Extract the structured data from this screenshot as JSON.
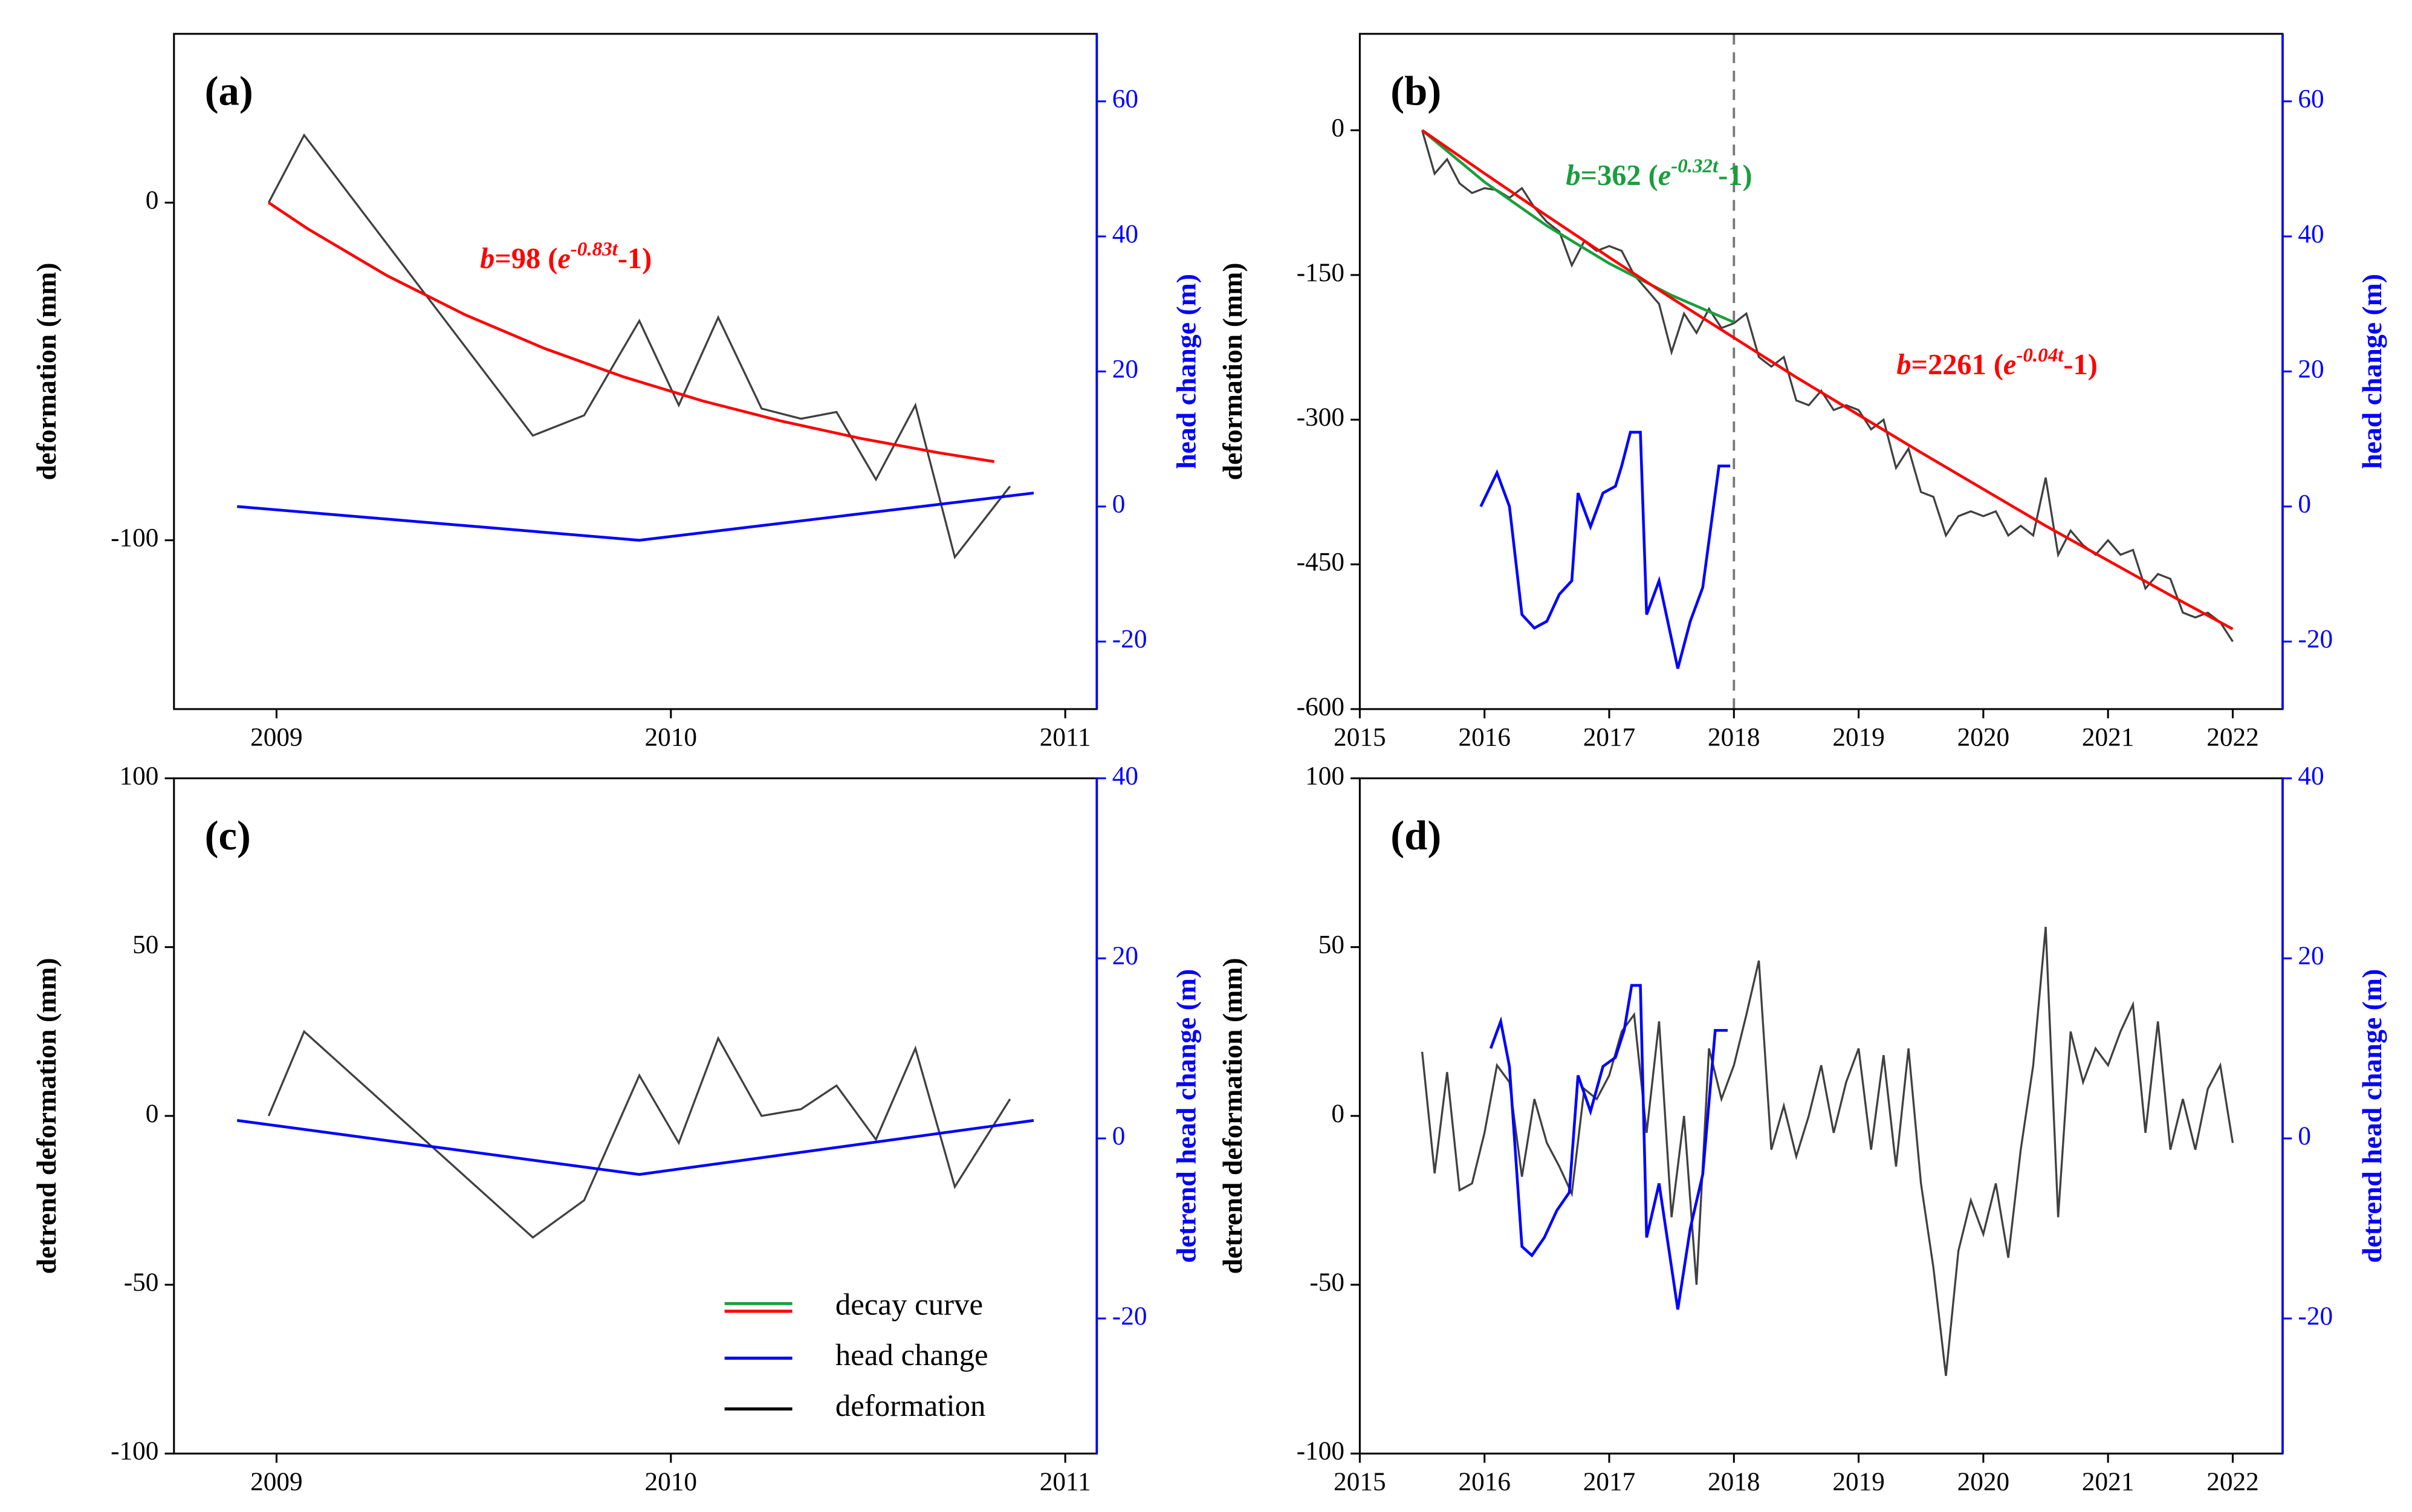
{
  "chart_data": [
    {
      "type": "line",
      "label": "(a)",
      "ylabel": "deformation (mm)",
      "y2label": "head change (m)",
      "y2color": "#0000ff",
      "xlim": [
        2008.74,
        2011.08
      ],
      "xticks": [
        2009,
        2010,
        2011
      ],
      "ylim": [
        -150,
        50
      ],
      "yticks": [
        -100,
        0
      ],
      "y2lim": [
        -30,
        70
      ],
      "y2ticks": [
        -20,
        0,
        20,
        40,
        60
      ],
      "series": [
        {
          "name": "deformation",
          "color": "#404040",
          "x": [
            2008.98,
            2009.07,
            2009.65,
            2009.78,
            2009.92,
            2010.02,
            2010.12,
            2010.23,
            2010.33,
            2010.42,
            2010.52,
            2010.62,
            2010.72,
            2010.86
          ],
          "values": [
            0,
            20,
            -69,
            -63,
            -35,
            -60,
            -34,
            -61,
            -64,
            -62,
            -82,
            -60,
            -105,
            -84
          ]
        },
        {
          "name": "decay curve",
          "color": "#ff0000",
          "x": [
            2008.98,
            2009.08,
            2009.28,
            2009.48,
            2009.68,
            2009.88,
            2010.08,
            2010.28,
            2010.48,
            2010.68,
            2010.82
          ],
          "values": [
            0,
            -7.8,
            -21.6,
            -33.3,
            -43.2,
            -51.6,
            -58.7,
            -64.7,
            -69.8,
            -74.1,
            -76.7
          ]
        },
        {
          "name": "head change",
          "color": "#0000ff",
          "axis": "y2",
          "x": [
            2008.9,
            2009.92,
            2010.92
          ],
          "values": [
            0,
            -5,
            2
          ]
        }
      ],
      "annotations": [
        {
          "color": "#ff0000",
          "parts": [
            "b",
            "=98 (",
            "e",
            "-0.83t",
            "-1)"
          ]
        }
      ]
    },
    {
      "type": "line",
      "label": "(b)",
      "ylabel": "deformation (mm)",
      "y2label": "head change (m)",
      "y2color": "#0000ff",
      "xlim": [
        2015,
        2022.4
      ],
      "xticks": [
        2015,
        2016,
        2017,
        2018,
        2019,
        2020,
        2021,
        2022
      ],
      "ylim": [
        -600,
        100
      ],
      "yticks": [
        -600,
        -450,
        -300,
        -150,
        0
      ],
      "y2lim": [
        -30,
        70
      ],
      "y2ticks": [
        -20,
        0,
        20,
        40,
        60
      ],
      "vlines": [
        2018
      ],
      "series": [
        {
          "name": "deformation",
          "color": "#404040",
          "x": [
            2015.5,
            2015.6,
            2015.7,
            2015.8,
            2015.9,
            2016.0,
            2016.1,
            2016.2,
            2016.3,
            2016.4,
            2016.5,
            2016.6,
            2016.7,
            2016.8,
            2016.9,
            2017.0,
            2017.1,
            2017.2,
            2017.3,
            2017.4,
            2017.5,
            2017.6,
            2017.7,
            2017.8,
            2017.9,
            2018.0,
            2018.1,
            2018.2,
            2018.3,
            2018.4,
            2018.5,
            2018.6,
            2018.7,
            2018.8,
            2018.9,
            2019.0,
            2019.1,
            2019.2,
            2019.3,
            2019.4,
            2019.5,
            2019.6,
            2019.7,
            2019.8,
            2019.9,
            2020.0,
            2020.1,
            2020.2,
            2020.3,
            2020.4,
            2020.5,
            2020.6,
            2020.7,
            2020.8,
            2020.9,
            2021.0,
            2021.1,
            2021.2,
            2021.3,
            2021.4,
            2021.5,
            2021.6,
            2021.7,
            2021.8,
            2021.9,
            2022.0
          ],
          "values": [
            0,
            -45,
            -30,
            -55,
            -65,
            -60,
            -62,
            -70,
            -60,
            -80,
            -95,
            -105,
            -140,
            -115,
            -125,
            -120,
            -125,
            -150,
            -165,
            -180,
            -230,
            -190,
            -210,
            -185,
            -205,
            -200,
            -190,
            -235,
            -245,
            -235,
            -280,
            -285,
            -270,
            -290,
            -285,
            -290,
            -310,
            -300,
            -350,
            -330,
            -375,
            -380,
            -420,
            -400,
            -395,
            -400,
            -395,
            -420,
            -410,
            -420,
            -360,
            -440,
            -415,
            -430,
            -440,
            -425,
            -440,
            -435,
            -475,
            -460,
            -465,
            -500,
            -505,
            -500,
            -510,
            -530
          ]
        },
        {
          "name": "decay curve",
          "color": "#1a9e3c",
          "x": [
            2015.5,
            2016.0,
            2016.5,
            2017.0,
            2017.5,
            2018.0
          ],
          "values": [
            0,
            -53.6,
            -99,
            -138,
            -171,
            -199
          ]
        },
        {
          "name": "decay curve",
          "color": "#ff0000",
          "x": [
            2015.5,
            2016.0,
            2016.5,
            2017.0,
            2017.5,
            2018.0,
            2018.5,
            2019.0,
            2019.5,
            2020.0,
            2020.5,
            2021.0,
            2021.5,
            2022.0
          ],
          "values": [
            0,
            -44.7,
            -88.6,
            -131.7,
            -174,
            -215,
            -256,
            -295,
            -334,
            -372,
            -410,
            -446,
            -482,
            -517
          ]
        },
        {
          "name": "head change",
          "color": "#0000ff",
          "axis": "y2",
          "x": [
            2015.97,
            2016.1,
            2016.2,
            2016.3,
            2016.4,
            2016.5,
            2016.6,
            2016.7,
            2016.75,
            2016.85,
            2016.95,
            2017.05,
            2017.1,
            2017.17,
            2017.25,
            2017.3,
            2017.4,
            2017.55,
            2017.65,
            2017.75,
            2017.88,
            2017.97
          ],
          "values": [
            0,
            5,
            0,
            -16,
            -18,
            -17,
            -13,
            -11,
            2,
            -3,
            2,
            3,
            6,
            11,
            11,
            -16,
            -11,
            -24,
            -17,
            -12,
            6,
            6
          ]
        }
      ],
      "annotations": [
        {
          "color": "#1a9e3c",
          "parts": [
            "b",
            "=362 (",
            "e",
            "-0.32t",
            "-1)"
          ]
        },
        {
          "color": "#ff0000",
          "parts": [
            "b",
            "=2261 (",
            "e",
            "-0.04t",
            "-1)"
          ]
        }
      ]
    },
    {
      "type": "line",
      "label": "(c)",
      "ylabel": "detrend deformation (mm)",
      "y2label": "detrend head change (m)",
      "y2color": "#0000ff",
      "xlim": [
        2008.74,
        2011.08
      ],
      "xticks": [
        2009,
        2010,
        2011
      ],
      "ylim": [
        -100,
        100
      ],
      "yticks": [
        -100,
        -50,
        0,
        50,
        100
      ],
      "y2lim": [
        -35,
        40
      ],
      "y2ticks": [
        -20,
        0,
        20,
        40
      ],
      "series": [
        {
          "name": "deformation",
          "color": "#404040",
          "x": [
            2008.98,
            2009.07,
            2009.65,
            2009.78,
            2009.92,
            2010.02,
            2010.12,
            2010.23,
            2010.33,
            2010.42,
            2010.52,
            2010.62,
            2010.72,
            2010.86
          ],
          "values": [
            0,
            25,
            -36,
            -25,
            12,
            -8,
            23,
            0,
            2,
            9,
            -7,
            20,
            -21,
            5
          ]
        },
        {
          "name": "head change",
          "color": "#0000ff",
          "axis": "y2",
          "x": [
            2008.9,
            2009.92,
            2010.92
          ],
          "values": [
            2,
            -4,
            2
          ]
        }
      ],
      "legend": [
        {
          "name": "decay curve",
          "colors": [
            "#1a9e3c",
            "#ff0000"
          ]
        },
        {
          "name": "head change",
          "colors": [
            "#0000ff"
          ]
        },
        {
          "name": "deformation",
          "colors": [
            "#000000"
          ]
        }
      ]
    },
    {
      "type": "line",
      "label": "(d)",
      "ylabel": "detrend deformation (mm)",
      "y2label": "detrend head change (m)",
      "y2color": "#0000ff",
      "xlim": [
        2015,
        2022.4
      ],
      "xticks": [
        2015,
        2016,
        2017,
        2018,
        2019,
        2020,
        2021,
        2022
      ],
      "ylim": [
        -100,
        100
      ],
      "yticks": [
        -100,
        -50,
        0,
        50,
        100
      ],
      "y2lim": [
        -35,
        40
      ],
      "y2ticks": [
        -20,
        0,
        20,
        40
      ],
      "series": [
        {
          "name": "deformation",
          "color": "#404040",
          "x": [
            2015.5,
            2015.6,
            2015.7,
            2015.8,
            2015.9,
            2016.0,
            2016.1,
            2016.2,
            2016.3,
            2016.4,
            2016.5,
            2016.6,
            2016.7,
            2016.8,
            2016.9,
            2017.0,
            2017.1,
            2017.2,
            2017.3,
            2017.4,
            2017.5,
            2017.6,
            2017.7,
            2017.8,
            2017.9,
            2018.0,
            2018.1,
            2018.2,
            2018.3,
            2018.4,
            2018.5,
            2018.6,
            2018.7,
            2018.8,
            2018.9,
            2019.0,
            2019.1,
            2019.2,
            2019.3,
            2019.4,
            2019.5,
            2019.6,
            2019.7,
            2019.8,
            2019.9,
            2020.0,
            2020.1,
            2020.2,
            2020.3,
            2020.4,
            2020.5,
            2020.6,
            2020.7,
            2020.8,
            2020.9,
            2021.0,
            2021.1,
            2021.2,
            2021.3,
            2021.4,
            2021.5,
            2021.6,
            2021.7,
            2021.8,
            2021.9,
            2022.0
          ],
          "values": [
            19,
            -17,
            13,
            -22,
            -20,
            -5,
            15,
            10,
            -18,
            5,
            -8,
            -15,
            -23,
            8,
            5,
            12,
            25,
            30,
            -5,
            28,
            -30,
            0,
            -50,
            20,
            5,
            15,
            30,
            46,
            -10,
            3,
            -12,
            0,
            15,
            -5,
            10,
            20,
            -10,
            18,
            -15,
            20,
            -20,
            -45,
            -77,
            -40,
            -25,
            -35,
            -20,
            -42,
            -10,
            15,
            56,
            -30,
            25,
            10,
            20,
            15,
            25,
            33,
            -5,
            28,
            -10,
            5,
            -10,
            8,
            15,
            -8
          ]
        },
        {
          "name": "head change",
          "color": "#0000ff",
          "axis": "y2",
          "x": [
            2016.05,
            2016.13,
            2016.2,
            2016.3,
            2016.38,
            2016.48,
            2016.58,
            2016.68,
            2016.75,
            2016.85,
            2016.95,
            2017.05,
            2017.12,
            2017.18,
            2017.25,
            2017.3,
            2017.4,
            2017.55,
            2017.65,
            2017.75,
            2017.85,
            2017.95
          ],
          "values": [
            10,
            13,
            8,
            -12,
            -13,
            -11,
            -8,
            -6,
            7,
            3,
            8,
            9,
            12,
            17,
            17,
            -11,
            -5,
            -19,
            -10,
            -4,
            12,
            12
          ]
        }
      ]
    }
  ]
}
